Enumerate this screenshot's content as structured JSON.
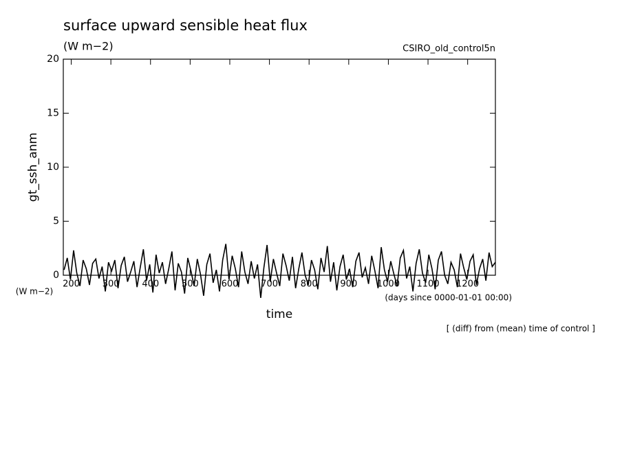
{
  "chart_data": {
    "type": "line",
    "title": "surface upward sensible heat flux",
    "subtitle": "(W m−2)",
    "annotation": "CSIRO_old_control5n",
    "y_label": "gt_ssh_anm",
    "y_unit": "(W m−2)",
    "x_label": "time",
    "x_unit": "(days since 0000-01-01 00:00)",
    "footnote": "[ (diff) from (mean) time of control ]",
    "xlim": [
      180,
      1270
    ],
    "xticks": [
      200,
      300,
      400,
      500,
      600,
      700,
      800,
      900,
      1000,
      1100,
      1200
    ],
    "ylim": [
      0,
      20
    ],
    "yticks": [
      0,
      5,
      10,
      15,
      20
    ],
    "x": [
      182,
      190,
      198,
      206,
      214,
      222,
      230,
      238,
      246,
      254,
      262,
      270,
      278,
      286,
      294,
      302,
      310,
      318,
      326,
      334,
      342,
      350,
      358,
      366,
      374,
      382,
      390,
      398,
      406,
      414,
      422,
      430,
      438,
      446,
      454,
      462,
      470,
      478,
      486,
      494,
      502,
      510,
      518,
      526,
      534,
      542,
      550,
      558,
      566,
      574,
      582,
      590,
      598,
      606,
      614,
      622,
      630,
      638,
      646,
      654,
      662,
      670,
      678,
      686,
      694,
      702,
      710,
      718,
      726,
      734,
      742,
      750,
      758,
      766,
      774,
      782,
      790,
      798,
      806,
      814,
      822,
      830,
      838,
      846,
      854,
      862,
      870,
      878,
      886,
      894,
      902,
      910,
      918,
      926,
      934,
      942,
      950,
      958,
      966,
      974,
      982,
      990,
      998,
      1006,
      1014,
      1022,
      1030,
      1038,
      1046,
      1054,
      1062,
      1070,
      1078,
      1086,
      1094,
      1102,
      1110,
      1118,
      1126,
      1134,
      1142,
      1150,
      1158,
      1166,
      1174,
      1182,
      1190,
      1198,
      1206,
      1214,
      1222,
      1230,
      1238,
      1246,
      1254,
      1262,
      1270
    ],
    "series": [
      {
        "color": "#000000",
        "values": [
          0.5,
          1.6,
          -0.4,
          2.3,
          0.2,
          -1.0,
          1.4,
          0.6,
          -0.9,
          1.1,
          1.5,
          -0.3,
          0.8,
          -1.5,
          1.2,
          0.4,
          1.4,
          -1.2,
          0.9,
          1.7,
          -0.6,
          0.3,
          1.3,
          -1.1,
          0.7,
          2.4,
          -0.5,
          1.0,
          -1.6,
          1.9,
          0.2,
          1.2,
          -0.8,
          0.6,
          2.2,
          -1.4,
          1.1,
          0.3,
          -1.7,
          1.6,
          0.4,
          -1.0,
          1.5,
          0.1,
          -1.9,
          1.0,
          2.0,
          -0.7,
          0.5,
          -1.5,
          1.4,
          2.9,
          -0.4,
          1.8,
          0.6,
          -1.1,
          2.2,
          0.3,
          -0.8,
          1.3,
          -0.3,
          1.0,
          -2.1,
          0.7,
          2.8,
          -0.6,
          1.5,
          0.2,
          -1.0,
          2.0,
          0.9,
          -0.5,
          1.7,
          -1.2,
          0.6,
          2.1,
          0.0,
          -0.9,
          1.4,
          0.5,
          -1.3,
          1.6,
          0.3,
          2.7,
          -0.6,
          1.2,
          -1.4,
          0.8,
          1.9,
          -0.4,
          0.6,
          -1.1,
          1.3,
          2.1,
          -0.2,
          0.7,
          -0.8,
          1.8,
          0.4,
          -1.2,
          2.6,
          0.5,
          -0.6,
          1.3,
          0.1,
          -1.0,
          1.6,
          2.3,
          -0.3,
          0.8,
          -1.5,
          1.1,
          2.4,
          0.2,
          -0.7,
          1.9,
          0.6,
          -1.3,
          1.4,
          2.2,
          0.0,
          -0.8,
          1.2,
          0.5,
          -1.1,
          2.0,
          0.7,
          -0.4,
          1.3,
          1.9,
          -0.9,
          0.6,
          1.5,
          -0.5,
          2.1,
          0.8,
          1.2
        ]
      }
    ]
  }
}
